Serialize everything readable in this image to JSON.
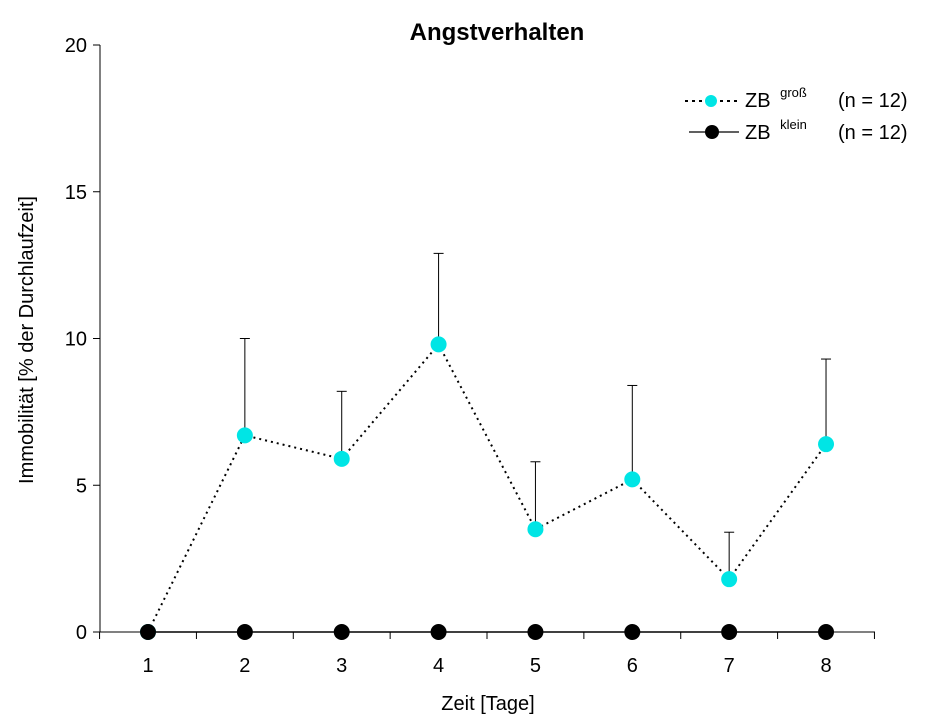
{
  "chart_data": {
    "type": "line",
    "title": "Angstverhalten",
    "xlabel": "Zeit [Tage]",
    "ylabel": "Immobilität [% der Durchlaufzeit]",
    "x": [
      1,
      2,
      3,
      4,
      5,
      6,
      7,
      8
    ],
    "ylim": [
      0,
      20
    ],
    "yticks": [
      0,
      5,
      10,
      15,
      20
    ],
    "grid": false,
    "legend_position": "top-right",
    "series": [
      {
        "legend_base": "ZB",
        "legend_sup": "groß",
        "legend_n": "(n = 12)",
        "color": "#00e5e5",
        "line_style": "dotted",
        "values": [
          0,
          6.7,
          5.9,
          9.8,
          3.5,
          5.2,
          1.8,
          6.4
        ],
        "error_upper": [
          0,
          10.0,
          8.2,
          12.9,
          5.8,
          8.4,
          3.4,
          9.3
        ]
      },
      {
        "legend_base": "ZB",
        "legend_sup": "klein",
        "legend_n": "(n = 12)",
        "color": "#000000",
        "line_style": "solid",
        "values": [
          0,
          0,
          0,
          0,
          0,
          0,
          0,
          0
        ]
      }
    ]
  }
}
